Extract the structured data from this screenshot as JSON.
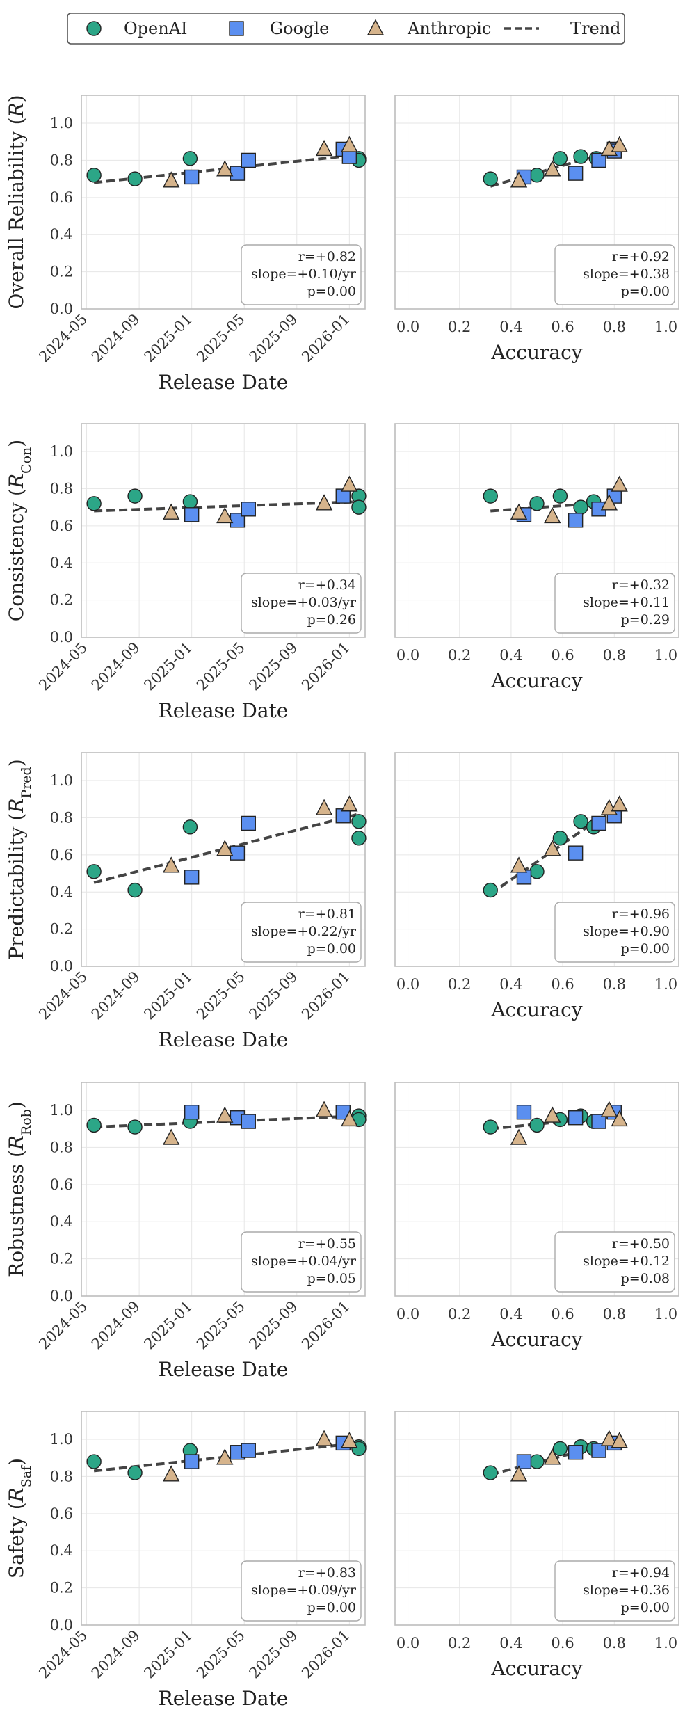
{
  "legend": [
    {
      "key": "openai",
      "label": "OpenAI",
      "marker": "circle",
      "color": "#2ca687"
    },
    {
      "key": "google",
      "label": "Google",
      "marker": "square",
      "color": "#5b8ff0"
    },
    {
      "key": "anthropic",
      "label": "Anthropic",
      "marker": "triangle",
      "color": "#d6b48c"
    },
    {
      "key": "trend",
      "label": "Trend",
      "marker": "dashed-line",
      "color": "#444444"
    }
  ],
  "chart_data": [
    {
      "type": "scatter",
      "metric": "Overall Reliability",
      "ylabel": "Overall Reliability",
      "ysym": "R",
      "ysub": "",
      "xlabel": "Release Date",
      "xaxis": "date",
      "xlim": [
        2024.3,
        2026.1
      ],
      "ylim": [
        0,
        1.15
      ],
      "xticks": [
        "2024-05",
        "2024-09",
        "2025-01",
        "2025-05",
        "2025-09",
        "2026-01"
      ],
      "yticks": [
        "0.0",
        "0.2",
        "0.4",
        "0.6",
        "0.8",
        "1.0"
      ],
      "trend": [
        [
          2024.38,
          0.68
        ],
        [
          2026.06,
          0.83
        ]
      ],
      "stats": {
        "r": "r=+0.82",
        "slope": "slope=+0.10/yr",
        "p": "p=0.00"
      },
      "series": [
        {
          "name": "OpenAI",
          "points": [
            [
              2024.38,
              0.72
            ],
            [
              2024.64,
              0.7
            ],
            [
              2024.99,
              0.81
            ],
            [
              2026.06,
              0.81
            ],
            [
              2026.06,
              0.8
            ]
          ]
        },
        {
          "name": "Google",
          "points": [
            [
              2025.0,
              0.71
            ],
            [
              2025.29,
              0.73
            ],
            [
              2025.36,
              0.8
            ],
            [
              2025.96,
              0.86
            ],
            [
              2026.0,
              0.82
            ]
          ]
        },
        {
          "name": "Anthropic",
          "points": [
            [
              2024.87,
              0.69
            ],
            [
              2025.21,
              0.75
            ],
            [
              2025.84,
              0.86
            ],
            [
              2026.0,
              0.88
            ]
          ]
        }
      ]
    },
    {
      "type": "scatter",
      "metric": "Overall Reliability",
      "ylabel": "",
      "ysym": "",
      "ysub": "",
      "xlabel": "Accuracy",
      "xaxis": "numeric",
      "xlim": [
        -0.05,
        1.05
      ],
      "ylim": [
        0,
        1.15
      ],
      "xticks": [
        "0.0",
        "0.2",
        "0.4",
        "0.6",
        "0.8",
        "1.0"
      ],
      "yticks": [],
      "trend": [
        [
          0.32,
          0.66
        ],
        [
          0.82,
          0.86
        ]
      ],
      "stats": {
        "r": "r=+0.92",
        "slope": "slope=+0.38",
        "p": "p=0.00"
      },
      "series": [
        {
          "name": "OpenAI",
          "points": [
            [
              0.32,
              0.7
            ],
            [
              0.5,
              0.72
            ],
            [
              0.59,
              0.81
            ],
            [
              0.67,
              0.82
            ],
            [
              0.73,
              0.81
            ]
          ]
        },
        {
          "name": "Google",
          "points": [
            [
              0.45,
              0.71
            ],
            [
              0.65,
              0.73
            ],
            [
              0.74,
              0.8
            ],
            [
              0.8,
              0.86
            ],
            [
              0.8,
              0.85
            ]
          ]
        },
        {
          "name": "Anthropic",
          "points": [
            [
              0.43,
              0.69
            ],
            [
              0.56,
              0.75
            ],
            [
              0.78,
              0.86
            ],
            [
              0.82,
              0.88
            ]
          ]
        }
      ]
    },
    {
      "type": "scatter",
      "metric": "Consistency",
      "ylabel": "Consistency",
      "ysym": "R",
      "ysub": "Con",
      "xlabel": "Release Date",
      "xaxis": "date",
      "xlim": [
        2024.3,
        2026.1
      ],
      "ylim": [
        0,
        1.15
      ],
      "xticks": [
        "2024-05",
        "2024-09",
        "2025-01",
        "2025-05",
        "2025-09",
        "2026-01"
      ],
      "yticks": [
        "0.0",
        "0.2",
        "0.4",
        "0.6",
        "0.8",
        "1.0"
      ],
      "trend": [
        [
          2024.38,
          0.68
        ],
        [
          2026.06,
          0.73
        ]
      ],
      "stats": {
        "r": "r=+0.34",
        "slope": "slope=+0.03/yr",
        "p": "p=0.26"
      },
      "series": [
        {
          "name": "OpenAI",
          "points": [
            [
              2024.38,
              0.72
            ],
            [
              2024.64,
              0.76
            ],
            [
              2024.99,
              0.73
            ],
            [
              2026.06,
              0.76
            ],
            [
              2026.06,
              0.7
            ]
          ]
        },
        {
          "name": "Google",
          "points": [
            [
              2025.0,
              0.66
            ],
            [
              2025.29,
              0.63
            ],
            [
              2025.36,
              0.69
            ],
            [
              2025.96,
              0.76
            ]
          ]
        },
        {
          "name": "Anthropic",
          "points": [
            [
              2024.87,
              0.67
            ],
            [
              2025.21,
              0.65
            ],
            [
              2025.84,
              0.72
            ],
            [
              2026.0,
              0.82
            ]
          ]
        }
      ]
    },
    {
      "type": "scatter",
      "metric": "Consistency",
      "ylabel": "",
      "ysym": "",
      "ysub": "",
      "xlabel": "Accuracy",
      "xaxis": "numeric",
      "xlim": [
        -0.05,
        1.05
      ],
      "ylim": [
        0,
        1.15
      ],
      "xticks": [
        "0.0",
        "0.2",
        "0.4",
        "0.6",
        "0.8",
        "1.0"
      ],
      "yticks": [],
      "trend": [
        [
          0.32,
          0.68
        ],
        [
          0.82,
          0.73
        ]
      ],
      "stats": {
        "r": "r=+0.32",
        "slope": "slope=+0.11",
        "p": "p=0.29"
      },
      "series": [
        {
          "name": "OpenAI",
          "points": [
            [
              0.32,
              0.76
            ],
            [
              0.5,
              0.72
            ],
            [
              0.59,
              0.76
            ],
            [
              0.67,
              0.7
            ],
            [
              0.72,
              0.73
            ]
          ]
        },
        {
          "name": "Google",
          "points": [
            [
              0.45,
              0.66
            ],
            [
              0.65,
              0.63
            ],
            [
              0.74,
              0.69
            ],
            [
              0.8,
              0.76
            ]
          ]
        },
        {
          "name": "Anthropic",
          "points": [
            [
              0.43,
              0.67
            ],
            [
              0.56,
              0.65
            ],
            [
              0.78,
              0.72
            ],
            [
              0.82,
              0.82
            ]
          ]
        }
      ]
    },
    {
      "type": "scatter",
      "metric": "Predictability",
      "ylabel": "Predictability",
      "ysym": "R",
      "ysub": "Pred",
      "xlabel": "Release Date",
      "xaxis": "date",
      "xlim": [
        2024.3,
        2026.1
      ],
      "ylim": [
        0,
        1.15
      ],
      "xticks": [
        "2024-05",
        "2024-09",
        "2025-01",
        "2025-05",
        "2025-09",
        "2026-01"
      ],
      "yticks": [
        "0.0",
        "0.2",
        "0.4",
        "0.6",
        "0.8",
        "1.0"
      ],
      "trend": [
        [
          2024.38,
          0.45
        ],
        [
          2026.06,
          0.82
        ]
      ],
      "stats": {
        "r": "r=+0.81",
        "slope": "slope=+0.22/yr",
        "p": "p=0.00"
      },
      "series": [
        {
          "name": "OpenAI",
          "points": [
            [
              2024.38,
              0.51
            ],
            [
              2024.64,
              0.41
            ],
            [
              2024.99,
              0.75
            ],
            [
              2026.06,
              0.78
            ],
            [
              2026.06,
              0.69
            ]
          ]
        },
        {
          "name": "Google",
          "points": [
            [
              2025.0,
              0.48
            ],
            [
              2025.29,
              0.61
            ],
            [
              2025.36,
              0.77
            ],
            [
              2025.96,
              0.81
            ]
          ]
        },
        {
          "name": "Anthropic",
          "points": [
            [
              2024.87,
              0.54
            ],
            [
              2025.21,
              0.63
            ],
            [
              2025.84,
              0.85
            ],
            [
              2026.0,
              0.87
            ]
          ]
        }
      ]
    },
    {
      "type": "scatter",
      "metric": "Predictability",
      "ylabel": "",
      "ysym": "",
      "ysub": "",
      "xlabel": "Accuracy",
      "xaxis": "numeric",
      "xlim": [
        -0.05,
        1.05
      ],
      "ylim": [
        0,
        1.15
      ],
      "xticks": [
        "0.0",
        "0.2",
        "0.4",
        "0.6",
        "0.8",
        "1.0"
      ],
      "yticks": [],
      "trend": [
        [
          0.32,
          0.39
        ],
        [
          0.82,
          0.87
        ]
      ],
      "stats": {
        "r": "r=+0.96",
        "slope": "slope=+0.90",
        "p": "p=0.00"
      },
      "series": [
        {
          "name": "OpenAI",
          "points": [
            [
              0.32,
              0.41
            ],
            [
              0.5,
              0.51
            ],
            [
              0.59,
              0.69
            ],
            [
              0.67,
              0.78
            ],
            [
              0.72,
              0.75
            ]
          ]
        },
        {
          "name": "Google",
          "points": [
            [
              0.45,
              0.48
            ],
            [
              0.65,
              0.61
            ],
            [
              0.74,
              0.77
            ],
            [
              0.8,
              0.81
            ]
          ]
        },
        {
          "name": "Anthropic",
          "points": [
            [
              0.43,
              0.54
            ],
            [
              0.56,
              0.63
            ],
            [
              0.78,
              0.85
            ],
            [
              0.82,
              0.87
            ]
          ]
        }
      ]
    },
    {
      "type": "scatter",
      "metric": "Robustness",
      "ylabel": "Robustness",
      "ysym": "R",
      "ysub": "Rob",
      "xlabel": "Release Date",
      "xaxis": "date",
      "xlim": [
        2024.3,
        2026.1
      ],
      "ylim": [
        0,
        1.15
      ],
      "xticks": [
        "2024-05",
        "2024-09",
        "2025-01",
        "2025-05",
        "2025-09",
        "2026-01"
      ],
      "yticks": [
        "0.0",
        "0.2",
        "0.4",
        "0.6",
        "0.8",
        "1.0"
      ],
      "trend": [
        [
          2024.38,
          0.91
        ],
        [
          2026.06,
          0.97
        ]
      ],
      "stats": {
        "r": "r=+0.55",
        "slope": "slope=+0.04/yr",
        "p": "p=0.05"
      },
      "series": [
        {
          "name": "OpenAI",
          "points": [
            [
              2024.38,
              0.92
            ],
            [
              2024.64,
              0.91
            ],
            [
              2024.99,
              0.94
            ],
            [
              2026.06,
              0.97
            ],
            [
              2026.06,
              0.95
            ]
          ]
        },
        {
          "name": "Google",
          "points": [
            [
              2025.0,
              0.99
            ],
            [
              2025.29,
              0.96
            ],
            [
              2025.36,
              0.94
            ],
            [
              2025.96,
              0.99
            ]
          ]
        },
        {
          "name": "Anthropic",
          "points": [
            [
              2024.87,
              0.85
            ],
            [
              2025.21,
              0.97
            ],
            [
              2025.84,
              1.0
            ],
            [
              2026.0,
              0.95
            ]
          ]
        }
      ]
    },
    {
      "type": "scatter",
      "metric": "Robustness",
      "ylabel": "",
      "ysym": "",
      "ysub": "",
      "xlabel": "Accuracy",
      "xaxis": "numeric",
      "xlim": [
        -0.05,
        1.05
      ],
      "ylim": [
        0,
        1.15
      ],
      "xticks": [
        "0.0",
        "0.2",
        "0.4",
        "0.6",
        "0.8",
        "1.0"
      ],
      "yticks": [],
      "trend": [
        [
          0.32,
          0.9
        ],
        [
          0.82,
          0.97
        ]
      ],
      "stats": {
        "r": "r=+0.50",
        "slope": "slope=+0.12",
        "p": "p=0.08"
      },
      "series": [
        {
          "name": "OpenAI",
          "points": [
            [
              0.32,
              0.91
            ],
            [
              0.5,
              0.92
            ],
            [
              0.59,
              0.95
            ],
            [
              0.67,
              0.97
            ],
            [
              0.72,
              0.94
            ]
          ]
        },
        {
          "name": "Google",
          "points": [
            [
              0.45,
              0.99
            ],
            [
              0.65,
              0.96
            ],
            [
              0.74,
              0.94
            ],
            [
              0.8,
              0.99
            ]
          ]
        },
        {
          "name": "Anthropic",
          "points": [
            [
              0.43,
              0.85
            ],
            [
              0.56,
              0.97
            ],
            [
              0.78,
              1.0
            ],
            [
              0.82,
              0.95
            ]
          ]
        }
      ]
    },
    {
      "type": "scatter",
      "metric": "Safety",
      "ylabel": "Safety",
      "ysym": "R",
      "ysub": "Saf",
      "xlabel": "Release Date",
      "xaxis": "date",
      "xlim": [
        2024.3,
        2026.1
      ],
      "ylim": [
        0,
        1.15
      ],
      "xticks": [
        "2024-05",
        "2024-09",
        "2025-01",
        "2025-05",
        "2025-09",
        "2026-01"
      ],
      "yticks": [
        "0.0",
        "0.2",
        "0.4",
        "0.6",
        "0.8",
        "1.0"
      ],
      "trend": [
        [
          2024.38,
          0.83
        ],
        [
          2026.06,
          0.98
        ]
      ],
      "stats": {
        "r": "r=+0.83",
        "slope": "slope=+0.09/yr",
        "p": "p=0.00"
      },
      "series": [
        {
          "name": "OpenAI",
          "points": [
            [
              2024.38,
              0.88
            ],
            [
              2024.64,
              0.82
            ],
            [
              2024.99,
              0.94
            ],
            [
              2026.06,
              0.96
            ],
            [
              2026.06,
              0.95
            ]
          ]
        },
        {
          "name": "Google",
          "points": [
            [
              2025.0,
              0.88
            ],
            [
              2025.29,
              0.93
            ],
            [
              2025.36,
              0.94
            ],
            [
              2025.96,
              0.98
            ]
          ]
        },
        {
          "name": "Anthropic",
          "points": [
            [
              2024.87,
              0.81
            ],
            [
              2025.21,
              0.9
            ],
            [
              2025.84,
              1.0
            ],
            [
              2026.0,
              0.99
            ]
          ]
        }
      ]
    },
    {
      "type": "scatter",
      "metric": "Safety",
      "ylabel": "",
      "ysym": "",
      "ysub": "",
      "xlabel": "Accuracy",
      "xaxis": "numeric",
      "xlim": [
        -0.05,
        1.05
      ],
      "ylim": [
        0,
        1.15
      ],
      "xticks": [
        "0.0",
        "0.2",
        "0.4",
        "0.6",
        "0.8",
        "1.0"
      ],
      "yticks": [],
      "trend": [
        [
          0.32,
          0.81
        ],
        [
          0.82,
          0.99
        ]
      ],
      "stats": {
        "r": "r=+0.94",
        "slope": "slope=+0.36",
        "p": "p=0.00"
      },
      "series": [
        {
          "name": "OpenAI",
          "points": [
            [
              0.32,
              0.82
            ],
            [
              0.5,
              0.88
            ],
            [
              0.59,
              0.95
            ],
            [
              0.67,
              0.96
            ],
            [
              0.72,
              0.95
            ]
          ]
        },
        {
          "name": "Google",
          "points": [
            [
              0.45,
              0.88
            ],
            [
              0.65,
              0.93
            ],
            [
              0.74,
              0.94
            ],
            [
              0.8,
              0.98
            ]
          ]
        },
        {
          "name": "Anthropic",
          "points": [
            [
              0.43,
              0.81
            ],
            [
              0.56,
              0.9
            ],
            [
              0.78,
              1.0
            ],
            [
              0.82,
              0.99
            ]
          ]
        }
      ]
    }
  ]
}
